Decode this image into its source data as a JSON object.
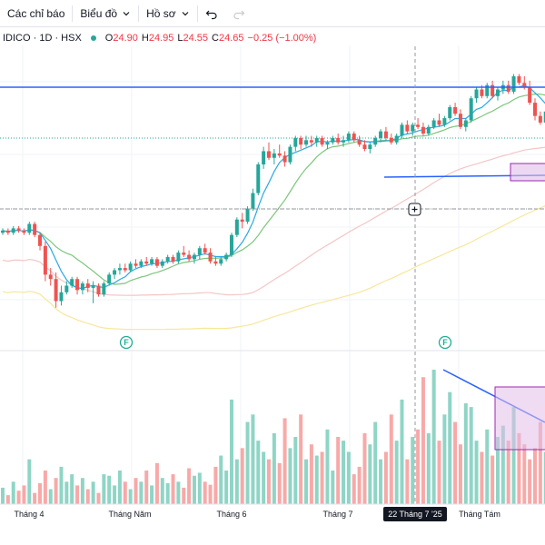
{
  "toolbar": {
    "indicators_label": "Các chỉ báo",
    "chart_label": "Biểu đồ",
    "profile_label": "Hồ sơ"
  },
  "legend": {
    "symbol": "IDICO · 1D · HSX",
    "open_label": "O",
    "open": "24.90",
    "high_label": "H",
    "high": "24.95",
    "low_label": "L",
    "low": "24.55",
    "close_label": "C",
    "close": "24.65",
    "change": "−0.25 (−1.00%)"
  },
  "colors": {
    "up": "#26a69a",
    "down": "#ef5350",
    "vol_up": "#8fd5c6",
    "vol_down": "#f7a9a8",
    "ma_fast": "#2aa8e6",
    "ma_mid": "#7cc67c",
    "ma_slow": "#f4c6c6",
    "ma_long": "#f7e79a",
    "drawing": "#2962ff",
    "box_fill": "#e1bee7",
    "box_stroke": "#9c27b0"
  },
  "events": [
    "F",
    "F"
  ],
  "cursor_date": "22 Tháng 7 '25",
  "chart_data": {
    "type": "candlestick",
    "x_ticks": [
      "Tháng 4",
      "Tháng Năm",
      "Tháng 6",
      "Tháng 7",
      "Tháng Tám"
    ],
    "candles": [
      [
        19.4,
        19.6,
        19.3,
        19.5
      ],
      [
        19.5,
        19.6,
        19.3,
        19.4
      ],
      [
        19.4,
        19.7,
        19.3,
        19.6
      ],
      [
        19.6,
        19.7,
        19.4,
        19.5
      ],
      [
        19.5,
        19.6,
        19.3,
        19.4
      ],
      [
        19.4,
        19.9,
        19.3,
        19.8
      ],
      [
        19.8,
        19.9,
        19.2,
        19.3
      ],
      [
        19.3,
        19.4,
        18.6,
        18.8
      ],
      [
        18.8,
        19.0,
        17.2,
        17.5
      ],
      [
        17.5,
        17.8,
        17.0,
        17.3
      ],
      [
        17.3,
        17.6,
        16.0,
        16.3
      ],
      [
        16.3,
        17.0,
        16.1,
        16.7
      ],
      [
        16.7,
        17.2,
        16.6,
        17.0
      ],
      [
        17.0,
        17.4,
        16.9,
        17.3
      ],
      [
        17.3,
        17.4,
        16.6,
        16.8
      ],
      [
        16.8,
        17.2,
        16.6,
        17.1
      ],
      [
        17.1,
        17.3,
        16.7,
        16.9
      ],
      [
        16.9,
        17.2,
        16.2,
        17.0
      ],
      [
        17.0,
        17.1,
        16.5,
        16.6
      ],
      [
        16.6,
        17.2,
        16.5,
        17.1
      ],
      [
        17.1,
        17.6,
        17.0,
        17.5
      ],
      [
        17.5,
        17.8,
        17.3,
        17.7
      ],
      [
        17.7,
        18.0,
        17.5,
        17.8
      ],
      [
        17.8,
        18.0,
        17.6,
        17.7
      ],
      [
        17.7,
        18.1,
        17.6,
        18.0
      ],
      [
        18.0,
        18.2,
        17.8,
        17.9
      ],
      [
        17.9,
        18.2,
        17.8,
        18.1
      ],
      [
        18.1,
        18.3,
        17.9,
        18.0
      ],
      [
        18.0,
        18.3,
        17.9,
        18.2
      ],
      [
        18.2,
        18.3,
        17.8,
        17.9
      ],
      [
        17.9,
        18.2,
        17.8,
        18.1
      ],
      [
        18.1,
        18.4,
        18.0,
        18.3
      ],
      [
        18.3,
        18.4,
        18.0,
        18.1
      ],
      [
        18.1,
        18.6,
        18.0,
        18.5
      ],
      [
        18.5,
        18.8,
        18.3,
        18.4
      ],
      [
        18.4,
        18.6,
        18.1,
        18.2
      ],
      [
        18.2,
        18.5,
        18.0,
        18.4
      ],
      [
        18.4,
        18.8,
        18.2,
        18.7
      ],
      [
        18.7,
        18.9,
        18.4,
        18.5
      ],
      [
        18.5,
        18.7,
        18.0,
        18.1
      ],
      [
        18.1,
        18.3,
        17.9,
        18.0
      ],
      [
        18.0,
        18.3,
        17.9,
        18.2
      ],
      [
        18.2,
        18.5,
        18.1,
        18.4
      ],
      [
        18.4,
        19.4,
        18.3,
        19.3
      ],
      [
        19.3,
        20.1,
        19.2,
        20.0
      ],
      [
        20.0,
        20.3,
        19.6,
        19.9
      ],
      [
        19.9,
        20.6,
        19.8,
        20.5
      ],
      [
        20.5,
        21.4,
        20.4,
        21.2
      ],
      [
        21.2,
        22.6,
        21.1,
        22.5
      ],
      [
        22.5,
        23.3,
        22.3,
        23.1
      ],
      [
        23.1,
        23.5,
        22.7,
        22.8
      ],
      [
        22.8,
        23.2,
        22.5,
        23.0
      ],
      [
        23.0,
        23.4,
        22.8,
        22.9
      ],
      [
        22.9,
        23.1,
        22.4,
        22.6
      ],
      [
        22.6,
        23.4,
        22.5,
        23.3
      ],
      [
        23.3,
        23.8,
        23.1,
        23.7
      ],
      [
        23.7,
        23.8,
        23.2,
        23.4
      ],
      [
        23.4,
        23.8,
        23.3,
        23.6
      ],
      [
        23.6,
        23.8,
        23.3,
        23.5
      ],
      [
        23.5,
        23.8,
        23.3,
        23.7
      ],
      [
        23.7,
        23.8,
        23.3,
        23.4
      ],
      [
        23.4,
        23.6,
        23.2,
        23.5
      ],
      [
        23.5,
        23.8,
        23.4,
        23.7
      ],
      [
        23.7,
        23.9,
        23.4,
        23.5
      ],
      [
        23.5,
        23.8,
        23.3,
        23.6
      ],
      [
        23.6,
        24.0,
        23.5,
        23.9
      ],
      [
        23.9,
        24.0,
        23.5,
        23.6
      ],
      [
        23.6,
        23.8,
        23.3,
        23.4
      ],
      [
        23.4,
        23.6,
        23.1,
        23.2
      ],
      [
        23.2,
        23.5,
        23.0,
        23.4
      ],
      [
        23.4,
        23.8,
        23.3,
        23.7
      ],
      [
        23.7,
        24.1,
        23.5,
        24.0
      ],
      [
        24.0,
        24.2,
        23.6,
        23.7
      ],
      [
        23.7,
        23.9,
        23.4,
        23.5
      ],
      [
        23.5,
        23.9,
        23.4,
        23.8
      ],
      [
        23.8,
        24.4,
        23.7,
        24.3
      ],
      [
        24.3,
        24.5,
        23.9,
        24.0
      ],
      [
        24.0,
        24.4,
        23.8,
        24.3
      ],
      [
        24.3,
        24.6,
        24.1,
        24.2
      ],
      [
        24.2,
        24.4,
        23.8,
        23.9
      ],
      [
        23.9,
        24.3,
        23.8,
        24.2
      ],
      [
        24.2,
        24.6,
        24.1,
        24.5
      ],
      [
        24.5,
        24.8,
        24.2,
        24.3
      ],
      [
        24.3,
        24.7,
        24.2,
        24.6
      ],
      [
        24.6,
        25.2,
        24.5,
        25.1
      ],
      [
        25.1,
        25.3,
        24.7,
        24.8
      ],
      [
        24.8,
        25.0,
        24.1,
        24.2
      ],
      [
        24.2,
        24.6,
        24.0,
        24.5
      ],
      [
        24.5,
        25.6,
        24.4,
        25.5
      ],
      [
        25.5,
        26.0,
        25.3,
        25.9
      ],
      [
        25.9,
        26.1,
        25.5,
        25.6
      ],
      [
        25.6,
        26.2,
        25.5,
        26.1
      ],
      [
        26.1,
        26.3,
        25.5,
        25.6
      ],
      [
        25.6,
        26.0,
        25.4,
        25.9
      ],
      [
        25.9,
        26.3,
        25.7,
        26.1
      ],
      [
        26.1,
        26.3,
        25.7,
        25.8
      ],
      [
        25.8,
        26.6,
        25.7,
        26.5
      ],
      [
        26.5,
        26.6,
        26.1,
        26.2
      ],
      [
        26.2,
        26.5,
        25.9,
        26.0
      ],
      [
        26.0,
        26.3,
        25.2,
        25.3
      ],
      [
        25.3,
        25.5,
        24.5,
        24.7
      ],
      [
        24.7,
        24.9,
        24.3,
        24.4
      ],
      [
        24.4,
        25.0,
        24.3,
        24.9
      ],
      [
        24.9,
        24.95,
        24.55,
        24.65
      ]
    ],
    "volume_up": [
      true,
      false,
      true,
      false,
      false,
      true,
      false,
      false,
      false,
      true,
      false,
      true,
      true,
      true,
      false,
      true,
      false,
      true,
      false,
      true,
      true,
      true,
      true,
      false,
      true,
      false,
      true,
      false,
      true,
      false,
      true,
      true,
      false,
      true,
      false,
      false,
      true,
      true,
      false,
      false,
      false,
      true,
      true,
      true,
      true,
      false,
      true,
      true,
      true,
      true,
      false,
      true,
      false,
      false,
      true,
      true,
      false,
      true,
      false,
      true,
      false,
      true,
      true,
      false,
      true,
      true,
      false,
      false,
      false,
      true,
      true,
      true,
      false,
      false,
      true,
      true,
      false,
      true,
      false,
      false,
      true,
      true,
      false,
      true,
      true,
      false,
      false,
      true,
      true,
      true,
      false,
      true,
      false,
      true,
      true,
      false,
      true,
      false,
      false,
      false,
      false,
      false,
      true,
      false
    ],
    "volume": [
      22,
      12,
      30,
      18,
      25,
      60,
      15,
      28,
      45,
      20,
      35,
      50,
      30,
      40,
      25,
      35,
      20,
      30,
      15,
      40,
      38,
      25,
      45,
      30,
      20,
      35,
      30,
      45,
      25,
      55,
      35,
      28,
      40,
      30,
      22,
      48,
      38,
      42,
      30,
      26,
      50,
      65,
      45,
      140,
      60,
      75,
      110,
      120,
      85,
      70,
      60,
      95,
      55,
      115,
      75,
      90,
      120,
      60,
      80,
      65,
      70,
      100,
      45,
      90,
      85,
      70,
      40,
      50,
      95,
      80,
      110,
      60,
      70,
      120,
      85,
      140,
      60,
      90,
      100,
      170,
      95,
      180,
      85,
      120,
      150,
      110,
      80,
      135,
      130,
      85,
      70,
      100,
      65,
      90,
      105,
      85,
      130,
      95,
      80,
      60,
      75,
      110,
      70,
      55
    ]
  }
}
